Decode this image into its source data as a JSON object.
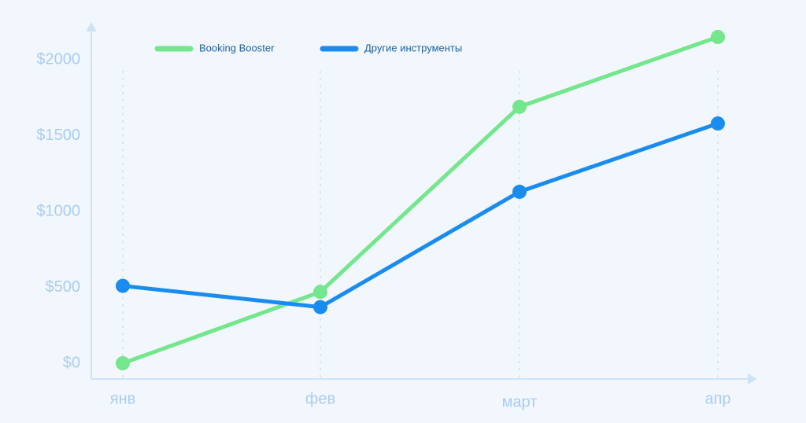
{
  "chart_data": {
    "type": "line",
    "categories": [
      "янв",
      "фев",
      "март",
      "апр"
    ],
    "series": [
      {
        "name": "Booking Booster",
        "color": "#74e68c",
        "values": [
          0,
          470,
          1690,
          2150
        ]
      },
      {
        "name": "Другие инструменты",
        "color": "#1a8cf0",
        "values": [
          510,
          370,
          1130,
          1580
        ]
      }
    ],
    "ylim": [
      -100,
      2200
    ],
    "yticks": [
      {
        "value": 0,
        "label": "$0"
      },
      {
        "value": 500,
        "label": "$500"
      },
      {
        "value": 1000,
        "label": "$1000"
      },
      {
        "value": 1500,
        "label": "$1500"
      },
      {
        "value": 2000,
        "label": "$2000"
      }
    ],
    "grid": true,
    "legend": "top"
  }
}
